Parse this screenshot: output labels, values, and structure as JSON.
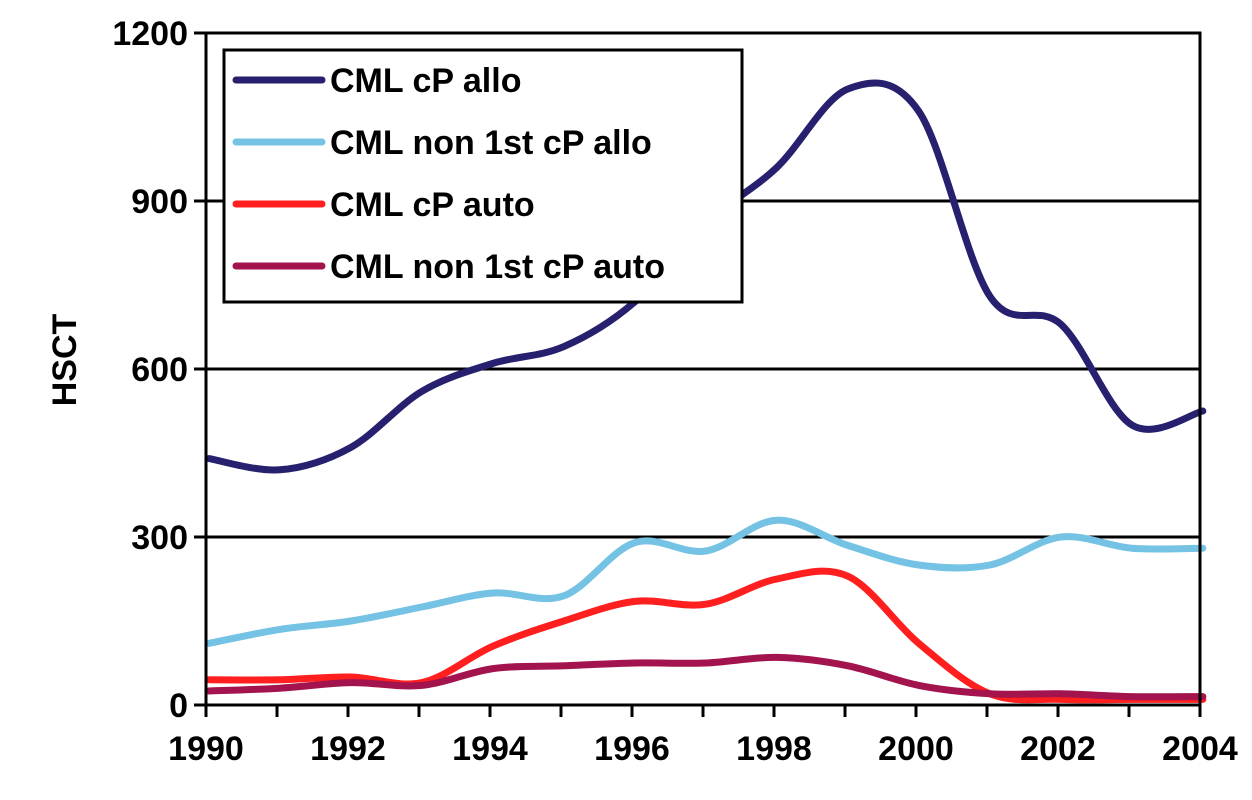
{
  "chart_data": {
    "type": "line",
    "title": "",
    "xlabel": "",
    "ylabel": "HSCT",
    "xlim": [
      1990,
      2004
    ],
    "ylim": [
      0,
      1200
    ],
    "x_ticks": [
      1990,
      1992,
      1994,
      1996,
      1998,
      2000,
      2002,
      2004
    ],
    "y_ticks": [
      0,
      300,
      600,
      900,
      1200
    ],
    "grid": "horizontal",
    "legend_position": "top-left",
    "x": [
      1990,
      1991,
      1992,
      1993,
      1994,
      1995,
      1996,
      1997,
      1998,
      1999,
      2000,
      2001,
      2002,
      2003,
      2004
    ],
    "series": [
      {
        "name": "CML cP allo",
        "color": "#26206e",
        "values": [
          440,
          420,
          460,
          560,
          610,
          640,
          720,
          860,
          960,
          1100,
          1060,
          730,
          680,
          500,
          525
        ]
      },
      {
        "name": "CML non 1st cP allo",
        "color": "#74c2e4",
        "values": [
          110,
          135,
          150,
          175,
          200,
          195,
          290,
          275,
          330,
          285,
          250,
          250,
          300,
          280,
          280
        ]
      },
      {
        "name": "CML cP auto",
        "color": "#ff1f1f",
        "values": [
          45,
          45,
          50,
          40,
          105,
          150,
          185,
          180,
          225,
          230,
          110,
          20,
          10,
          10,
          10
        ]
      },
      {
        "name": "CML non 1st cP auto",
        "color": "#a3134d",
        "values": [
          25,
          30,
          40,
          35,
          65,
          70,
          75,
          75,
          85,
          70,
          35,
          20,
          20,
          15,
          15
        ]
      }
    ]
  }
}
